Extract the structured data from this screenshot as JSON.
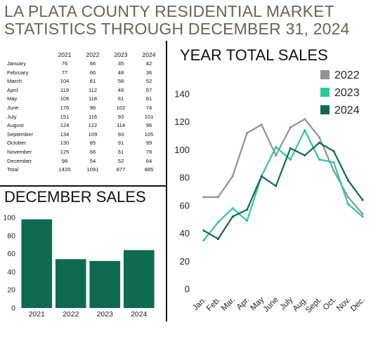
{
  "page": {
    "title_line1": "LA PLATA COUNTY RESIDENTIAL MARKET",
    "title_line2": "STATISTICS THROUGH DECEMBER 31, 2024"
  },
  "colors": {
    "title": "#6b6259",
    "bar": "#0f6b4f",
    "series_2022": "#929292",
    "series_2023": "#2bc89a",
    "series_2024": "#0f6b4f"
  },
  "table": {
    "headers": [
      "",
      "2021",
      "2022",
      "2023",
      "2024"
    ],
    "rows": [
      [
        "January",
        "76",
        "66",
        "35",
        "42"
      ],
      [
        "February",
        "77",
        "66",
        "48",
        "36"
      ],
      [
        "March",
        "104",
        "81",
        "58",
        "52"
      ],
      [
        "April",
        "119",
        "112",
        "49",
        "57"
      ],
      [
        "May",
        "106",
        "118",
        "81",
        "81"
      ],
      [
        "June",
        "176",
        "96",
        "102",
        "74"
      ],
      [
        "July",
        "151",
        "116",
        "93",
        "101"
      ],
      [
        "August",
        "124",
        "122",
        "114",
        "96"
      ],
      [
        "September",
        "134",
        "109",
        "93",
        "105"
      ],
      [
        "October",
        "130",
        "85",
        "91",
        "99"
      ],
      [
        "November",
        "125",
        "66",
        "61",
        "78"
      ],
      [
        "December",
        "98",
        "54",
        "52",
        "64"
      ],
      [
        "Total",
        "1420",
        "1091",
        "877",
        "885"
      ]
    ]
  },
  "chart_data": [
    {
      "type": "bar",
      "title": "DECEMBER SALES",
      "categories": [
        "2021",
        "2022",
        "2023",
        "2024"
      ],
      "values": [
        98,
        54,
        52,
        64
      ],
      "ylim": [
        0,
        100
      ],
      "yticks": [
        0,
        20,
        40,
        60,
        80,
        100
      ],
      "grid": false,
      "xlabel": "",
      "ylabel": ""
    },
    {
      "type": "line",
      "title": "YEAR TOTAL SALES",
      "categories": [
        "Jan.",
        "Feb.",
        "Mar.",
        "Apr.",
        "May",
        "June",
        "July",
        "Aug.",
        "Sept.",
        "Oct.",
        "Nov.",
        "Dec."
      ],
      "series": [
        {
          "name": "2022",
          "values": [
            66,
            66,
            81,
            112,
            118,
            96,
            116,
            122,
            109,
            85,
            66,
            54
          ]
        },
        {
          "name": "2023",
          "values": [
            35,
            48,
            58,
            49,
            81,
            102,
            93,
            114,
            93,
            91,
            61,
            52
          ]
        },
        {
          "name": "2024",
          "values": [
            42,
            36,
            52,
            57,
            81,
            74,
            101,
            96,
            105,
            99,
            78,
            64
          ]
        }
      ],
      "ylim": [
        0,
        140
      ],
      "yticks": [
        0,
        20,
        40,
        60,
        80,
        100,
        120,
        140
      ],
      "legend": "top-right",
      "grid": false,
      "xlabel": "",
      "ylabel": ""
    }
  ]
}
